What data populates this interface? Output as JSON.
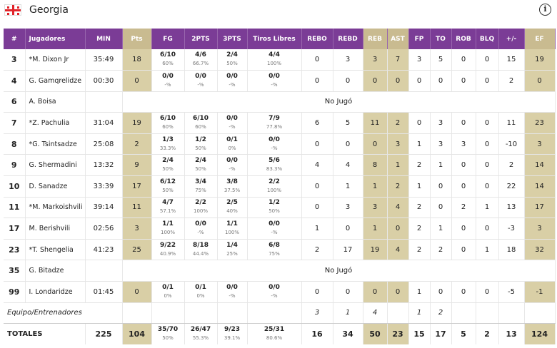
{
  "team": {
    "name": "Georgia",
    "colors": {
      "flag_red": "#e1242a",
      "header_purple": "#7b3c96",
      "highlight_gold": "#d9cfa6"
    }
  },
  "columns": [
    "#",
    "Jugadores",
    "MIN",
    "Pts",
    "FG",
    "2PTS",
    "3PTS",
    "Tiros Libres",
    "REBO",
    "REBD",
    "REB",
    "AST",
    "FP",
    "TO",
    "ROB",
    "BLQ",
    "+/-",
    "EF"
  ],
  "players": [
    {
      "num": "3",
      "name": "*M. Dixon Jr",
      "min": "35:49",
      "pts": "18",
      "fg": "6/10",
      "fg_p": "60%",
      "p2": "4/6",
      "p2_p": "66.7%",
      "p3": "2/4",
      "p3_p": "50%",
      "ft": "4/4",
      "ft_p": "100%",
      "rebo": "0",
      "rebd": "3",
      "reb": "3",
      "ast": "7",
      "fp": "3",
      "to": "5",
      "rob": "0",
      "blq": "0",
      "pm": "15",
      "ef": "19"
    },
    {
      "num": "4",
      "name": "G. Gamqrelidze",
      "min": "00:30",
      "pts": "0",
      "fg": "0/0",
      "fg_p": "-%",
      "p2": "0/0",
      "p2_p": "-%",
      "p3": "0/0",
      "p3_p": "-%",
      "ft": "0/0",
      "ft_p": "-%",
      "rebo": "0",
      "rebd": "0",
      "reb": "0",
      "ast": "0",
      "fp": "0",
      "to": "0",
      "rob": "0",
      "blq": "0",
      "pm": "2",
      "ef": "0"
    },
    {
      "num": "6",
      "name": "A. Boisa",
      "dnp": "No Jugó"
    },
    {
      "num": "7",
      "name": "*Z. Pachulia",
      "min": "31:04",
      "pts": "19",
      "fg": "6/10",
      "fg_p": "60%",
      "p2": "6/10",
      "p2_p": "60%",
      "p3": "0/0",
      "p3_p": "-%",
      "ft": "7/9",
      "ft_p": "77.8%",
      "rebo": "6",
      "rebd": "5",
      "reb": "11",
      "ast": "2",
      "fp": "0",
      "to": "3",
      "rob": "0",
      "blq": "0",
      "pm": "11",
      "ef": "23"
    },
    {
      "num": "8",
      "name": "*G. Tsintsadze",
      "min": "25:08",
      "pts": "2",
      "fg": "1/3",
      "fg_p": "33.3%",
      "p2": "1/2",
      "p2_p": "50%",
      "p3": "0/1",
      "p3_p": "0%",
      "ft": "0/0",
      "ft_p": "-%",
      "rebo": "0",
      "rebd": "0",
      "reb": "0",
      "ast": "3",
      "fp": "1",
      "to": "3",
      "rob": "3",
      "blq": "0",
      "pm": "-10",
      "ef": "3"
    },
    {
      "num": "9",
      "name": "G. Shermadini",
      "min": "13:32",
      "pts": "9",
      "fg": "2/4",
      "fg_p": "50%",
      "p2": "2/4",
      "p2_p": "50%",
      "p3": "0/0",
      "p3_p": "-%",
      "ft": "5/6",
      "ft_p": "83.3%",
      "rebo": "4",
      "rebd": "4",
      "reb": "8",
      "ast": "1",
      "fp": "2",
      "to": "1",
      "rob": "0",
      "blq": "0",
      "pm": "2",
      "ef": "14"
    },
    {
      "num": "10",
      "name": "D. Sanadze",
      "min": "33:39",
      "pts": "17",
      "fg": "6/12",
      "fg_p": "50%",
      "p2": "3/4",
      "p2_p": "75%",
      "p3": "3/8",
      "p3_p": "37.5%",
      "ft": "2/2",
      "ft_p": "100%",
      "rebo": "0",
      "rebd": "1",
      "reb": "1",
      "ast": "2",
      "fp": "1",
      "to": "0",
      "rob": "0",
      "blq": "0",
      "pm": "22",
      "ef": "14"
    },
    {
      "num": "11",
      "name": "*M. Markoishvili",
      "min": "39:14",
      "pts": "11",
      "fg": "4/7",
      "fg_p": "57.1%",
      "p2": "2/2",
      "p2_p": "100%",
      "p3": "2/5",
      "p3_p": "40%",
      "ft": "1/2",
      "ft_p": "50%",
      "rebo": "0",
      "rebd": "3",
      "reb": "3",
      "ast": "4",
      "fp": "2",
      "to": "0",
      "rob": "2",
      "blq": "1",
      "pm": "13",
      "ef": "17"
    },
    {
      "num": "17",
      "name": "M. Berishvili",
      "min": "02:56",
      "pts": "3",
      "fg": "1/1",
      "fg_p": "100%",
      "p2": "0/0",
      "p2_p": "-%",
      "p3": "1/1",
      "p3_p": "100%",
      "ft": "0/0",
      "ft_p": "-%",
      "rebo": "1",
      "rebd": "0",
      "reb": "1",
      "ast": "0",
      "fp": "2",
      "to": "1",
      "rob": "0",
      "blq": "0",
      "pm": "-3",
      "ef": "3"
    },
    {
      "num": "23",
      "name": "*T. Shengelia",
      "min": "41:23",
      "pts": "25",
      "fg": "9/22",
      "fg_p": "40.9%",
      "p2": "8/18",
      "p2_p": "44.4%",
      "p3": "1/4",
      "p3_p": "25%",
      "ft": "6/8",
      "ft_p": "75%",
      "rebo": "2",
      "rebd": "17",
      "reb": "19",
      "ast": "4",
      "fp": "2",
      "to": "2",
      "rob": "0",
      "blq": "1",
      "pm": "18",
      "ef": "32"
    },
    {
      "num": "35",
      "name": "G. Bitadze",
      "dnp": "No Jugó"
    },
    {
      "num": "99",
      "name": "I. Londaridze",
      "min": "01:45",
      "pts": "0",
      "fg": "0/1",
      "fg_p": "0%",
      "p2": "0/1",
      "p2_p": "0%",
      "p3": "0/0",
      "p3_p": "-%",
      "ft": "0/0",
      "ft_p": "-%",
      "rebo": "0",
      "rebd": "0",
      "reb": "0",
      "ast": "0",
      "fp": "1",
      "to": "0",
      "rob": "0",
      "blq": "0",
      "pm": "-5",
      "ef": "-1"
    }
  ],
  "team_row": {
    "label": "Equipo/Entrenadores",
    "rebo": "3",
    "rebd": "1",
    "reb": "4",
    "fp": "1",
    "to": "2"
  },
  "totals": {
    "label": "TOTALES",
    "min": "225",
    "pts": "104",
    "fg": "35/70",
    "fg_p": "50%",
    "p2": "26/47",
    "p2_p": "55.3%",
    "p3": "9/23",
    "p3_p": "39.1%",
    "ft": "25/31",
    "ft_p": "80.6%",
    "rebo": "16",
    "rebd": "34",
    "reb": "50",
    "ast": "23",
    "fp": "15",
    "to": "17",
    "rob": "5",
    "blq": "2",
    "pm": "13",
    "ef": "124"
  }
}
